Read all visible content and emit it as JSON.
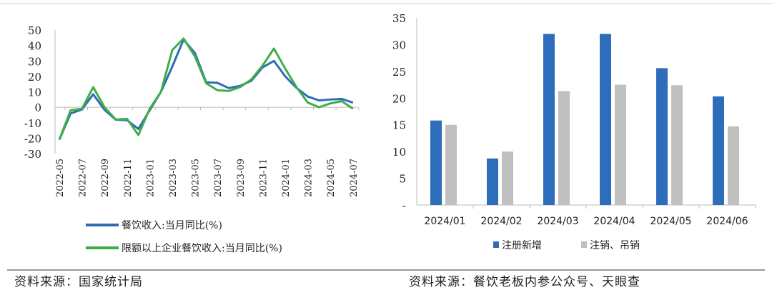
{
  "chart_data": [
    {
      "type": "line",
      "x": [
        "2022-05",
        "2022-06",
        "2022-07",
        "2022-08",
        "2022-09",
        "2022-10",
        "2022-11",
        "2022-12",
        "2023-01",
        "2023-02",
        "2023-03",
        "2023-04",
        "2023-05",
        "2023-06",
        "2023-07",
        "2023-08",
        "2023-09",
        "2023-10",
        "2023-11",
        "2023-12",
        "2024-01",
        "2024-02",
        "2024-03",
        "2024-04",
        "2024-05",
        "2024-06",
        "2024-07"
      ],
      "xtick_labels": [
        "2022-05",
        "2022-07",
        "2022-09",
        "2022-11",
        "2023-01",
        "2023-03",
        "2023-05",
        "2023-07",
        "2023-09",
        "2023-11",
        "2024-01",
        "2024-03",
        "2024-05",
        "2024-07"
      ],
      "yticks": [
        "50",
        "40",
        "30",
        "20",
        "10",
        "0",
        "-10",
        "-20",
        "-30"
      ],
      "ylim": [
        -30,
        50
      ],
      "series": [
        {
          "name": "餐饮收入:当月同比(%)",
          "color": "#2e6db4",
          "values": [
            -21,
            -4,
            -1.5,
            8.4,
            -1.7,
            -8.1,
            -8.4,
            -14.1,
            -2,
            10,
            26.3,
            43.8,
            35.1,
            16.1,
            15.8,
            12.4,
            13.8,
            17.1,
            25.8,
            30,
            20,
            12.5,
            6.9,
            4.4,
            5,
            5.4,
            3
          ]
        },
        {
          "name": "限额以上企业餐饮收入:当月同比(%)",
          "color": "#3fae4a",
          "values": [
            -21,
            -2,
            -1,
            13,
            0,
            -8,
            -7.5,
            -18,
            -1,
            10,
            37,
            44.5,
            33,
            15.5,
            11,
            10.5,
            13,
            18,
            27,
            38,
            25,
            13,
            3,
            0,
            2.5,
            4,
            -1
          ]
        }
      ],
      "legend": "bottom",
      "source": "资料来源：国家统计局"
    },
    {
      "type": "bar",
      "categories": [
        "2024/01",
        "2024/02",
        "2024/03",
        "2024/04",
        "2024/05",
        "2024/06"
      ],
      "yticks": [
        "35",
        "30",
        "25",
        "20",
        "15",
        "10",
        "5",
        "-"
      ],
      "ylim": [
        0,
        35
      ],
      "series": [
        {
          "name": "注册新增",
          "color": "#2e6dbc",
          "values": [
            15.8,
            8.7,
            32,
            32,
            25.6,
            20.3
          ]
        },
        {
          "name": "注销、吊销",
          "color": "#c0c0c0",
          "values": [
            15,
            10,
            21.3,
            22.5,
            22.4,
            14.7
          ]
        }
      ],
      "legend": "bottom",
      "source": "资料来源：餐饮老板内参公众号、天眼查"
    }
  ]
}
